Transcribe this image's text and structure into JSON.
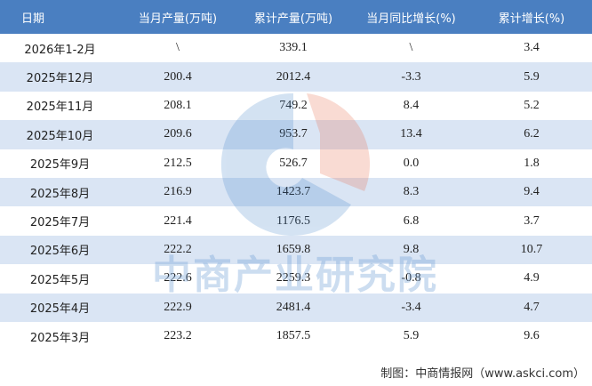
{
  "table": {
    "header": [
      "日期",
      "当月产量(万吨)",
      "累计产量(万吨)",
      "当月同比增长(%)",
      "累计增长(%)"
    ],
    "rows": [
      [
        "2026年1-2月",
        "\\",
        "339.1",
        "\\",
        "3.4"
      ],
      [
        "2025年12月",
        "200.4",
        "2012.4",
        "-3.3",
        "5.9"
      ],
      [
        "2025年11月",
        "208.1",
        "749.2",
        "8.4",
        "5.2"
      ],
      [
        "2025年10月",
        "209.6",
        "953.7",
        "13.4",
        "6.2"
      ],
      [
        "2025年9月",
        "212.5",
        "526.7",
        "0.0",
        "1.8"
      ],
      [
        "2025年8月",
        "216.9",
        "1423.7",
        "8.3",
        "9.4"
      ],
      [
        "2025年7月",
        "221.4",
        "1176.5",
        "6.8",
        "3.7"
      ],
      [
        "2025年6月",
        "222.2",
        "1659.8",
        "9.8",
        "10.7"
      ],
      [
        "2025年5月",
        "222.6",
        "2259.3",
        "-0.8",
        "4.9"
      ],
      [
        "2025年4月",
        "222.9",
        "2481.4",
        "-3.4",
        "4.7"
      ],
      [
        "2025年3月",
        "223.2",
        "1857.5",
        "5.9",
        "9.6"
      ]
    ]
  },
  "watermark": "中商产业研究院",
  "footer": {
    "source": "制图：中商情报网（www.askci.com）"
  }
}
